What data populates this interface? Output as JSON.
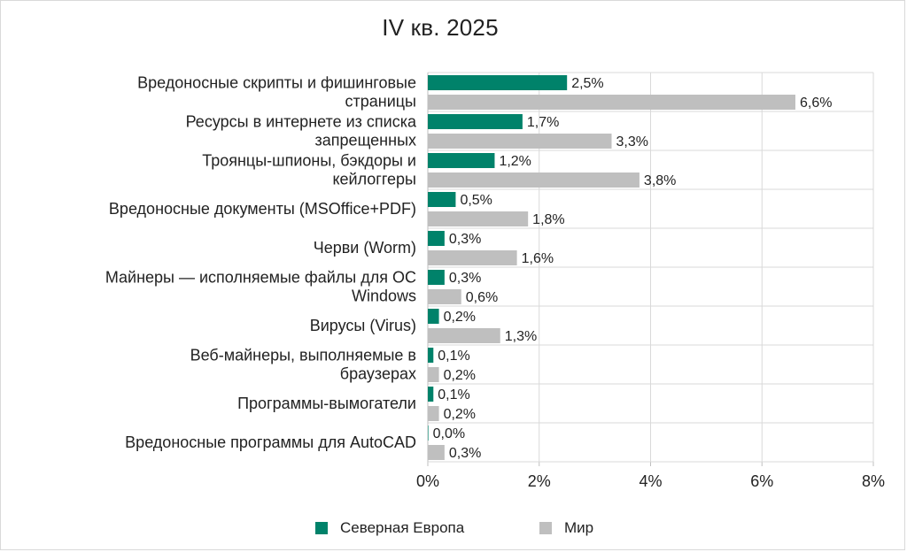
{
  "chart_data": {
    "type": "bar",
    "orientation": "horizontal",
    "title": "IV кв. 2025",
    "categories": [
      [
        "Вредоносные скрипты и фишинговые",
        "страницы"
      ],
      [
        "Ресурсы в интернете из списка",
        "запрещенных"
      ],
      [
        "Троянцы-шпионы, бэкдоры и",
        "кейлоггеры"
      ],
      [
        "Вредоносные документы (MSOffice+PDF)"
      ],
      [
        "Черви (Worm)"
      ],
      [
        "Майнеры — исполняемые файлы для ОС",
        "Windows"
      ],
      [
        "Вирусы (Virus)"
      ],
      [
        "Веб-майнеры, выполняемые в",
        "браузерах"
      ],
      [
        "Программы-вымогатели"
      ],
      [
        "Вредоносные программы для AutoCAD"
      ]
    ],
    "series": [
      {
        "name": "Северная Европа",
        "color": "#00826a",
        "values": [
          2.5,
          1.7,
          1.2,
          0.5,
          0.3,
          0.3,
          0.2,
          0.1,
          0.1,
          0.0
        ],
        "labels": [
          "2,5%",
          "1,7%",
          "1,2%",
          "0,5%",
          "0,3%",
          "0,3%",
          "0,2%",
          "0,1%",
          "0,1%",
          "0,0%"
        ]
      },
      {
        "name": "Мир",
        "color": "#bfbfbf",
        "values": [
          6.6,
          3.3,
          3.8,
          1.8,
          1.6,
          0.6,
          1.3,
          0.2,
          0.2,
          0.3
        ],
        "labels": [
          "6,6%",
          "3,3%",
          "3,8%",
          "1,8%",
          "1,6%",
          "0,6%",
          "1,3%",
          "0,2%",
          "0,2%",
          "0,3%"
        ]
      }
    ],
    "xlim": [
      0,
      8
    ],
    "xticks": [
      0,
      2,
      4,
      6,
      8
    ],
    "xtick_labels": [
      "0%",
      "2%",
      "4%",
      "6%",
      "8%"
    ],
    "grid": true,
    "legend_position": "bottom"
  }
}
